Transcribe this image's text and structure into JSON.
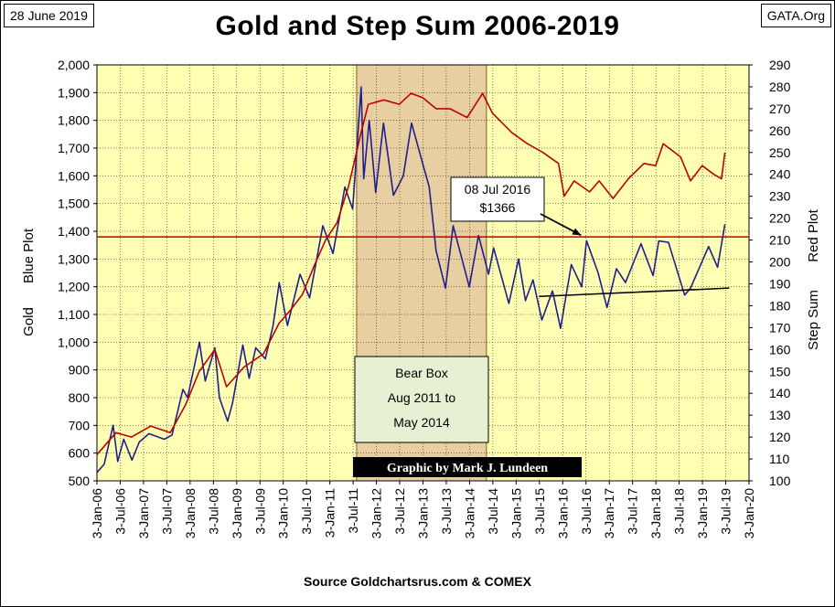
{
  "header": {
    "date": "28 June 2019",
    "site": "GATA.Org",
    "title": "Gold and Step Sum 2006-2019"
  },
  "footer": {
    "source": "Source Goldchartsrus.com & COMEX"
  },
  "colors": {
    "plot_background": "#FFFFB3",
    "bear_box_fill": "#E8CFA2",
    "gold_line": "#1F1F8C",
    "step_sum_line": "#C00000",
    "reference_line": "#C00000",
    "trend_line": "#000000"
  },
  "chart_data": {
    "type": "line",
    "title": "Gold and Step Sum 2006-2019",
    "x_tick_labels": [
      "3-Jan-06",
      "3-Jul-06",
      "3-Jan-07",
      "3-Jul-07",
      "3-Jan-08",
      "3-Jul-08",
      "3-Jan-09",
      "3-Jul-09",
      "3-Jan-10",
      "3-Jul-10",
      "3-Jan-11",
      "3-Jul-11",
      "3-Jan-12",
      "3-Jul-12",
      "3-Jan-13",
      "3-Jul-13",
      "3-Jan-14",
      "3-Jul-14",
      "3-Jan-15",
      "3-Jul-15",
      "3-Jan-16",
      "3-Jul-16",
      "3-Jan-17",
      "3-Jul-17",
      "3-Jan-18",
      "3-Jul-18",
      "3-Jan-19",
      "3-Jul-19",
      "3-Jan-20"
    ],
    "left_axis": {
      "label_line1": "Gold",
      "label_line2": "Blue Plot",
      "ylim": [
        500,
        2000
      ],
      "ticks": [
        "500",
        "600",
        "700",
        "800",
        "900",
        "1,000",
        "1,100",
        "1,200",
        "1,300",
        "1,400",
        "1,500",
        "1,600",
        "1,700",
        "1,800",
        "1,900",
        "2,000"
      ]
    },
    "right_axis": {
      "label_line1": "Red Plot",
      "label_line2": "Step Sum",
      "ylim": [
        100,
        290
      ],
      "ticks": [
        "100",
        "110",
        "120",
        "130",
        "140",
        "150",
        "160",
        "170",
        "180",
        "190",
        "200",
        "210",
        "220",
        "230",
        "240",
        "250",
        "260",
        "270",
        "280",
        "290"
      ]
    },
    "series": [
      {
        "name": "Gold",
        "axis": "left",
        "points": [
          [
            "2006-01-03",
            530
          ],
          [
            "2006-03-01",
            560
          ],
          [
            "2006-05-10",
            700
          ],
          [
            "2006-06-15",
            570
          ],
          [
            "2006-08-01",
            650
          ],
          [
            "2006-10-05",
            575
          ],
          [
            "2006-12-01",
            640
          ],
          [
            "2007-02-15",
            670
          ],
          [
            "2007-06-15",
            650
          ],
          [
            "2007-08-15",
            665
          ],
          [
            "2007-11-08",
            830
          ],
          [
            "2007-12-15",
            800
          ],
          [
            "2008-03-17",
            1000
          ],
          [
            "2008-05-01",
            860
          ],
          [
            "2008-07-15",
            980
          ],
          [
            "2008-08-20",
            800
          ],
          [
            "2008-10-24",
            715
          ],
          [
            "2008-12-01",
            780
          ],
          [
            "2009-02-20",
            990
          ],
          [
            "2009-04-10",
            870
          ],
          [
            "2009-06-01",
            980
          ],
          [
            "2009-08-15",
            940
          ],
          [
            "2009-10-15",
            1060
          ],
          [
            "2009-12-02",
            1215
          ],
          [
            "2010-02-05",
            1060
          ],
          [
            "2010-05-15",
            1245
          ],
          [
            "2010-07-28",
            1160
          ],
          [
            "2010-11-09",
            1420
          ],
          [
            "2011-01-28",
            1320
          ],
          [
            "2011-05-01",
            1560
          ],
          [
            "2011-07-01",
            1480
          ],
          [
            "2011-09-06",
            1920
          ],
          [
            "2011-09-26",
            1590
          ],
          [
            "2011-11-08",
            1800
          ],
          [
            "2011-12-29",
            1540
          ],
          [
            "2012-02-28",
            1790
          ],
          [
            "2012-05-16",
            1530
          ],
          [
            "2012-08-01",
            1600
          ],
          [
            "2012-10-05",
            1790
          ],
          [
            "2012-12-28",
            1650
          ],
          [
            "2013-02-20",
            1560
          ],
          [
            "2013-04-15",
            1330
          ],
          [
            "2013-06-28",
            1195
          ],
          [
            "2013-08-27",
            1420
          ],
          [
            "2013-12-31",
            1200
          ],
          [
            "2014-03-14",
            1385
          ],
          [
            "2014-06-01",
            1245
          ],
          [
            "2014-07-10",
            1340
          ],
          [
            "2014-11-07",
            1140
          ],
          [
            "2015-01-22",
            1300
          ],
          [
            "2015-03-17",
            1150
          ],
          [
            "2015-05-15",
            1225
          ],
          [
            "2015-07-24",
            1080
          ],
          [
            "2015-10-15",
            1185
          ],
          [
            "2015-12-17",
            1050
          ],
          [
            "2016-03-11",
            1280
          ],
          [
            "2016-05-31",
            1200
          ],
          [
            "2016-07-08",
            1366
          ],
          [
            "2016-10-07",
            1250
          ],
          [
            "2016-12-15",
            1125
          ],
          [
            "2017-02-27",
            1265
          ],
          [
            "2017-05-09",
            1215
          ],
          [
            "2017-09-08",
            1355
          ],
          [
            "2017-12-12",
            1240
          ],
          [
            "2018-01-25",
            1365
          ],
          [
            "2018-04-11",
            1360
          ],
          [
            "2018-08-16",
            1170
          ],
          [
            "2018-10-01",
            1195
          ],
          [
            "2019-02-20",
            1345
          ],
          [
            "2019-05-01",
            1270
          ],
          [
            "2019-06-28",
            1425
          ]
        ]
      },
      {
        "name": "Step Sum",
        "axis": "right",
        "points": [
          [
            "2006-01-03",
            112
          ],
          [
            "2006-06-01",
            122
          ],
          [
            "2006-10-01",
            120
          ],
          [
            "2007-03-01",
            125
          ],
          [
            "2007-08-01",
            122
          ],
          [
            "2007-12-01",
            135
          ],
          [
            "2008-03-15",
            150
          ],
          [
            "2008-07-15",
            160
          ],
          [
            "2008-10-15",
            143
          ],
          [
            "2009-03-01",
            152
          ],
          [
            "2009-08-01",
            158
          ],
          [
            "2009-12-01",
            172
          ],
          [
            "2010-03-01",
            178
          ],
          [
            "2010-06-01",
            185
          ],
          [
            "2010-09-01",
            198
          ],
          [
            "2010-12-01",
            210
          ],
          [
            "2011-03-01",
            218
          ],
          [
            "2011-06-01",
            235
          ],
          [
            "2011-09-01",
            258
          ],
          [
            "2011-11-01",
            272
          ],
          [
            "2012-03-01",
            274
          ],
          [
            "2012-07-01",
            272
          ],
          [
            "2012-10-01",
            277
          ],
          [
            "2013-01-01",
            275
          ],
          [
            "2013-04-15",
            270
          ],
          [
            "2013-08-01",
            270
          ],
          [
            "2013-12-15",
            266
          ],
          [
            "2014-04-15",
            277
          ],
          [
            "2014-07-01",
            268
          ],
          [
            "2014-12-01",
            259
          ],
          [
            "2015-04-01",
            254
          ],
          [
            "2015-08-01",
            250
          ],
          [
            "2015-12-01",
            245
          ],
          [
            "2016-01-15",
            230
          ],
          [
            "2016-04-01",
            237
          ],
          [
            "2016-08-01",
            232
          ],
          [
            "2016-10-15",
            237
          ],
          [
            "2017-02-01",
            229
          ],
          [
            "2017-06-01",
            238
          ],
          [
            "2017-10-01",
            245
          ],
          [
            "2018-01-01",
            244
          ],
          [
            "2018-03-01",
            254
          ],
          [
            "2018-07-15",
            248
          ],
          [
            "2018-10-01",
            237
          ],
          [
            "2019-01-01",
            244
          ],
          [
            "2019-04-01",
            240
          ],
          [
            "2019-06-01",
            238
          ],
          [
            "2019-06-28",
            250
          ]
        ]
      }
    ],
    "reference_line": {
      "axis": "left",
      "value": 1380
    },
    "bear_box": {
      "x_start": "2011-08-01",
      "x_end": "2014-05-15",
      "label_lines": [
        "Bear Box",
        "Aug 2011 to",
        "May 2014"
      ]
    },
    "callout": {
      "lines": [
        "08 Jul 2016",
        "$1366"
      ],
      "target_x": "2016-07-08",
      "target_y": 1366
    },
    "trend_line": {
      "axis": "left",
      "start": [
        "2015-07-01",
        1165
      ],
      "end": [
        "2019-08-01",
        1195
      ]
    },
    "credit": "Graphic by Mark J. Lundeen",
    "grid": true
  }
}
